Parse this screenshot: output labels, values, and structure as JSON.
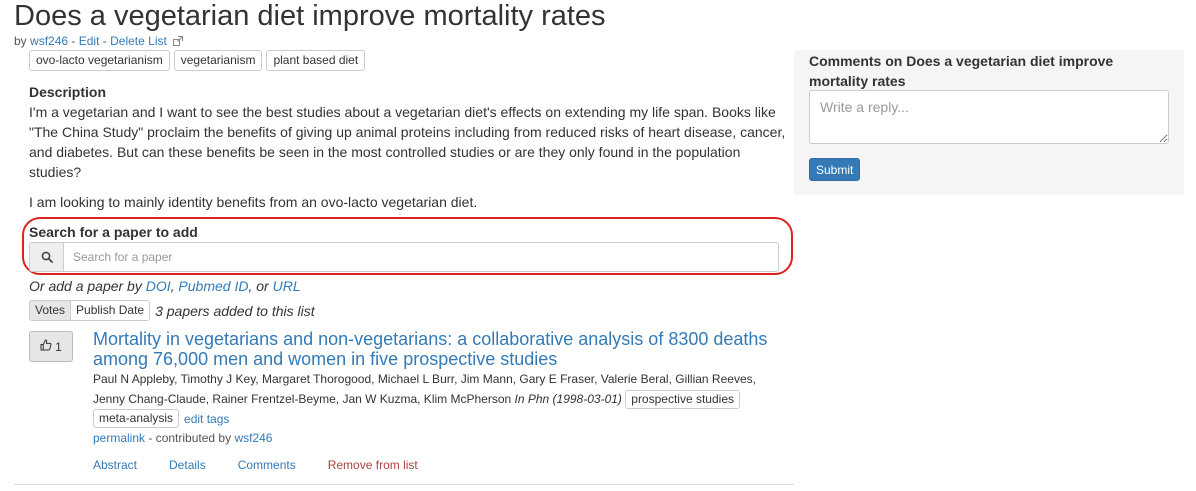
{
  "page": {
    "title": "Does a vegetarian diet improve mortality rates"
  },
  "byline": {
    "prefix": "by",
    "author": "wsf246",
    "sep1": "-",
    "edit": "Edit",
    "sep2": "-",
    "delete": "Delete List"
  },
  "tags": [
    "ovo-lacto vegetarianism",
    "vegetarianism",
    "plant based diet"
  ],
  "description": {
    "heading": "Description",
    "paragraph1": "I'm a vegetarian and I want to see the best studies about a vegetarian diet's effects on extending my life span. Books like \"The China Study\" proclaim the benefits of giving up animal proteins including from reduced risks of heart disease, cancer, and diabetes. But can these benefits be seen in the most controlled studies or are they only found in the population studies?",
    "paragraph2": "I am looking to mainly identity benefits from an ovo-lacto vegetarian diet."
  },
  "search": {
    "label": "Search for a paper to add",
    "placeholder": "Search for a paper",
    "icon": "search-icon"
  },
  "add_by": {
    "prefix": "Or add a paper by",
    "doi": "DOI",
    "comma1": ",",
    "pubmed": "Pubmed ID",
    "or": ", or",
    "url": "URL"
  },
  "sort": {
    "votes": "Votes",
    "publish_date": "Publish Date",
    "count_text": "3 papers added to this list"
  },
  "paper": {
    "votes": "1",
    "title": "Mortality in vegetarians and non-vegetarians: a collaborative analysis of 8300 deaths among 76,000 men and women in five prospective studies",
    "authors": "Paul N Appleby, Timothy J Key, Margaret Thorogood, Michael L Burr, Jim Mann, Gary E Fraser, Valerie Beral, Gillian Reeves, Jenny Chang-Claude, Rainer Frentzel-Beyme, Jan W Kuzma, Klim McPherson",
    "journal": "In Phn (1998-03-01)",
    "tags": [
      "prospective studies",
      "meta-analysis"
    ],
    "edit_tags": "edit tags",
    "permalink": "permalink",
    "contributed_by": "- contributed by",
    "contributor": "wsf246",
    "nav": {
      "abstract": "Abstract",
      "details": "Details",
      "comments": "Comments",
      "remove": "Remove from list"
    }
  },
  "comments": {
    "title": "Comments on Does a vegetarian diet improve mortality rates",
    "placeholder": "Write a reply...",
    "submit": "Submit"
  },
  "colors": {
    "link": "#337ab7",
    "danger": "#a94442",
    "highlight_outline": "#dd2222",
    "primary_button": "#337ab7"
  }
}
